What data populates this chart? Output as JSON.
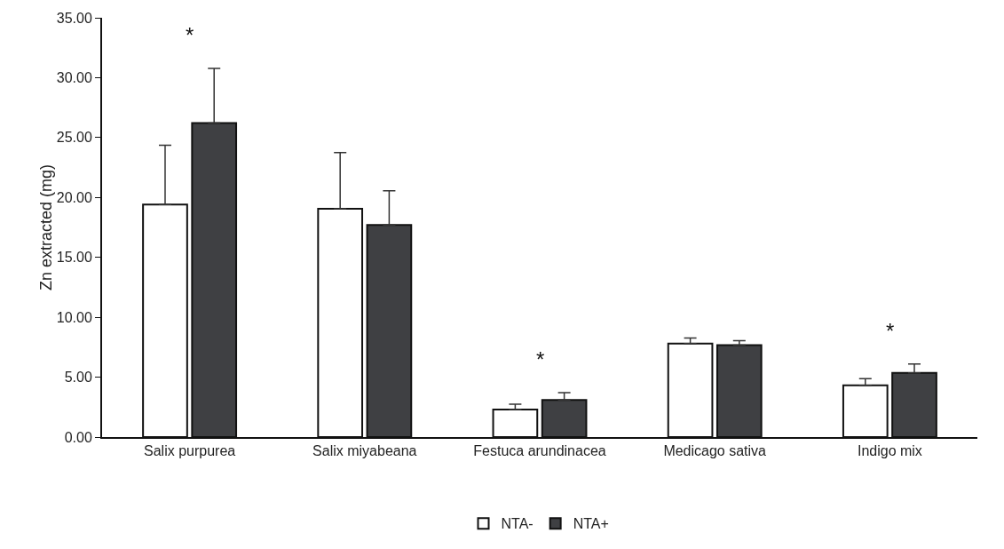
{
  "chart_data": {
    "type": "bar",
    "ylabel": "Zn extracted (mg)",
    "categories": [
      "Salix purpurea",
      "Salix miyabeana",
      "Festuca arundinacea",
      "Medicago sativa",
      "Indigo mix"
    ],
    "series": [
      {
        "name": "NTA-",
        "color": "#ffffff",
        "values": [
          19.41,
          19.06,
          2.3,
          7.81,
          4.32
        ],
        "errors": [
          4.94,
          4.69,
          0.45,
          0.45,
          0.55
        ]
      },
      {
        "name": "NTA+",
        "color": "#3f4043",
        "values": [
          26.21,
          17.7,
          3.1,
          7.68,
          5.35
        ],
        "errors": [
          4.57,
          2.86,
          0.61,
          0.37,
          0.74
        ]
      }
    ],
    "ylim": [
      0,
      35
    ],
    "yticks": [
      {
        "value": 0,
        "label": "0.00"
      },
      {
        "value": 5,
        "label": "5.00"
      },
      {
        "value": 10,
        "label": "10.00"
      },
      {
        "value": 15,
        "label": "15.00"
      },
      {
        "value": 20,
        "label": "20.00"
      },
      {
        "value": 25,
        "label": "25.00"
      },
      {
        "value": 30,
        "label": "30.00"
      },
      {
        "value": 35,
        "label": "35.00"
      }
    ],
    "annotations": [
      "*",
      "*",
      "*"
    ],
    "grid": false,
    "legend": "bottom"
  }
}
